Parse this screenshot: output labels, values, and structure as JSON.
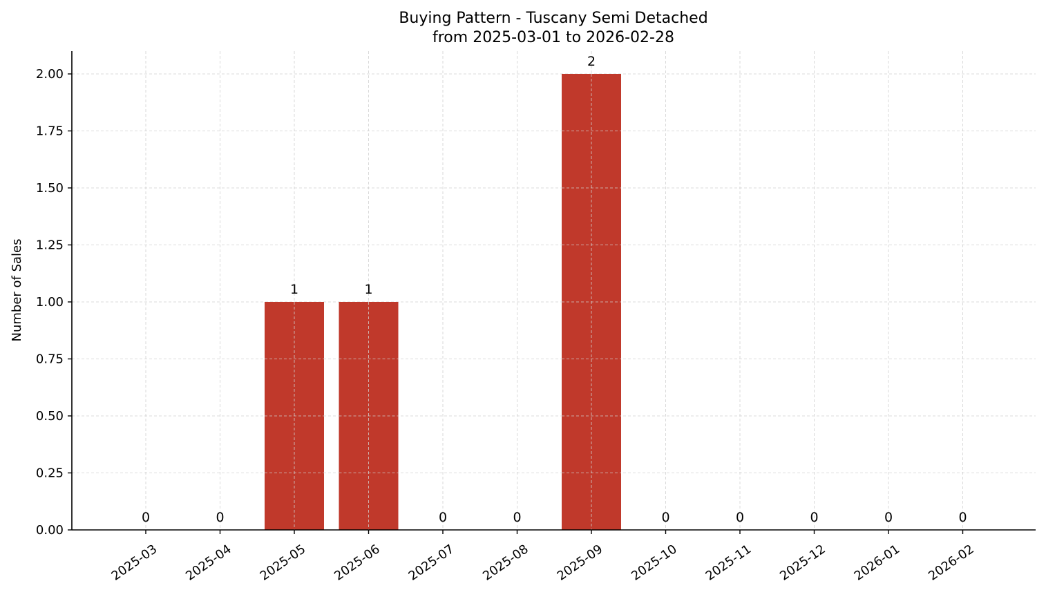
{
  "chart_data": {
    "type": "bar",
    "title": "Buying Pattern - Tuscany Semi Detached",
    "subtitle": "from 2025-03-01 to 2026-02-28",
    "xlabel": "",
    "ylabel": "Number of Sales",
    "categories": [
      "2025-03",
      "2025-04",
      "2025-05",
      "2025-06",
      "2025-07",
      "2025-08",
      "2025-09",
      "2025-10",
      "2025-11",
      "2025-12",
      "2026-01",
      "2026-02"
    ],
    "values": [
      0,
      0,
      1,
      1,
      0,
      0,
      2,
      0,
      0,
      0,
      0,
      0
    ],
    "data_labels": [
      "0",
      "0",
      "1",
      "1",
      "0",
      "0",
      "2",
      "0",
      "0",
      "0",
      "0",
      "0"
    ],
    "ylim": [
      0,
      2.1
    ],
    "yticks": [
      0,
      0.25,
      0.5,
      0.75,
      1.0,
      1.25,
      1.5,
      1.75,
      2.0
    ],
    "ytick_labels": [
      "0.00",
      "0.25",
      "0.50",
      "0.75",
      "1.00",
      "1.25",
      "1.50",
      "1.75",
      "2.00"
    ],
    "grid": true,
    "bar_color": "#c0392b"
  }
}
